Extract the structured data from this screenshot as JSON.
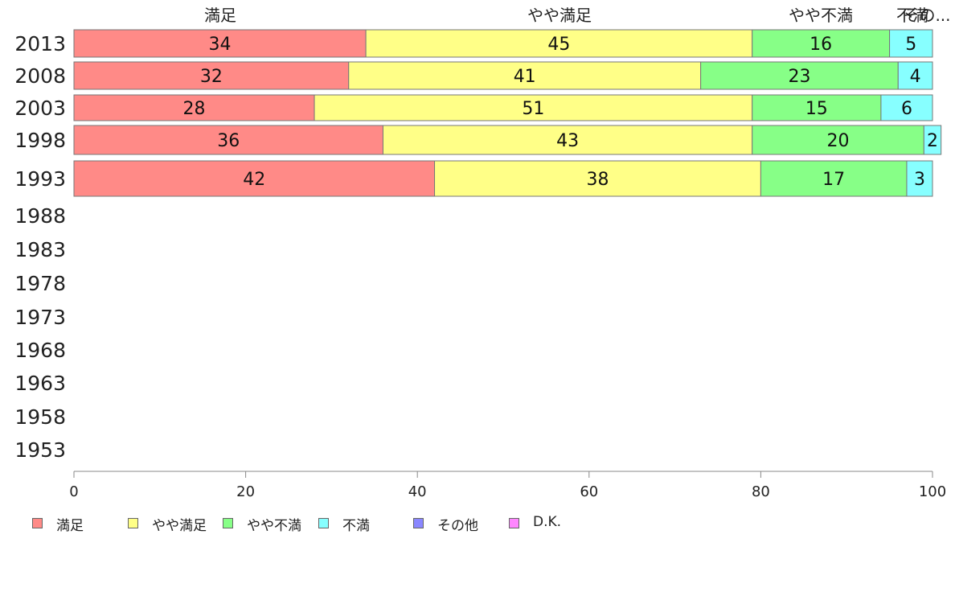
{
  "chart_data": {
    "type": "bar",
    "orientation": "horizontal",
    "stacked": true,
    "categories": [
      "2013",
      "2008",
      "2003",
      "1998",
      "1993",
      "1988",
      "1983",
      "1978",
      "1973",
      "1968",
      "1963",
      "1958",
      "1953"
    ],
    "series": [
      {
        "name": "満足",
        "color": "#ff8a87",
        "values": [
          34,
          32,
          28,
          36,
          42,
          null,
          null,
          null,
          null,
          null,
          null,
          null,
          null
        ]
      },
      {
        "name": "やや満足",
        "color": "#ffff87",
        "values": [
          45,
          41,
          51,
          43,
          38,
          null,
          null,
          null,
          null,
          null,
          null,
          null,
          null
        ]
      },
      {
        "name": "やや不満",
        "color": "#87ff87",
        "values": [
          16,
          23,
          15,
          20,
          17,
          null,
          null,
          null,
          null,
          null,
          null,
          null,
          null
        ]
      },
      {
        "name": "不満",
        "color": "#87ffff",
        "values": [
          5,
          4,
          6,
          2,
          3,
          null,
          null,
          null,
          null,
          null,
          null,
          null,
          null
        ]
      },
      {
        "name": "その他",
        "color": "#8a87ff",
        "values": [
          null,
          null,
          null,
          null,
          null,
          null,
          null,
          null,
          null,
          null,
          null,
          null,
          null
        ]
      },
      {
        "name": "D.K.",
        "color": "#ff87ff",
        "values": [
          null,
          null,
          null,
          null,
          null,
          null,
          null,
          null,
          null,
          null,
          null,
          null,
          null
        ]
      }
    ],
    "top_labels": [
      "満足",
      "やや満足",
      "やや不満",
      "不満",
      "その..."
    ],
    "xlim": [
      0,
      100
    ],
    "xticks": [
      "0",
      "20",
      "40",
      "60",
      "80",
      "100"
    ],
    "grid": false,
    "legend_position": "bottom"
  }
}
